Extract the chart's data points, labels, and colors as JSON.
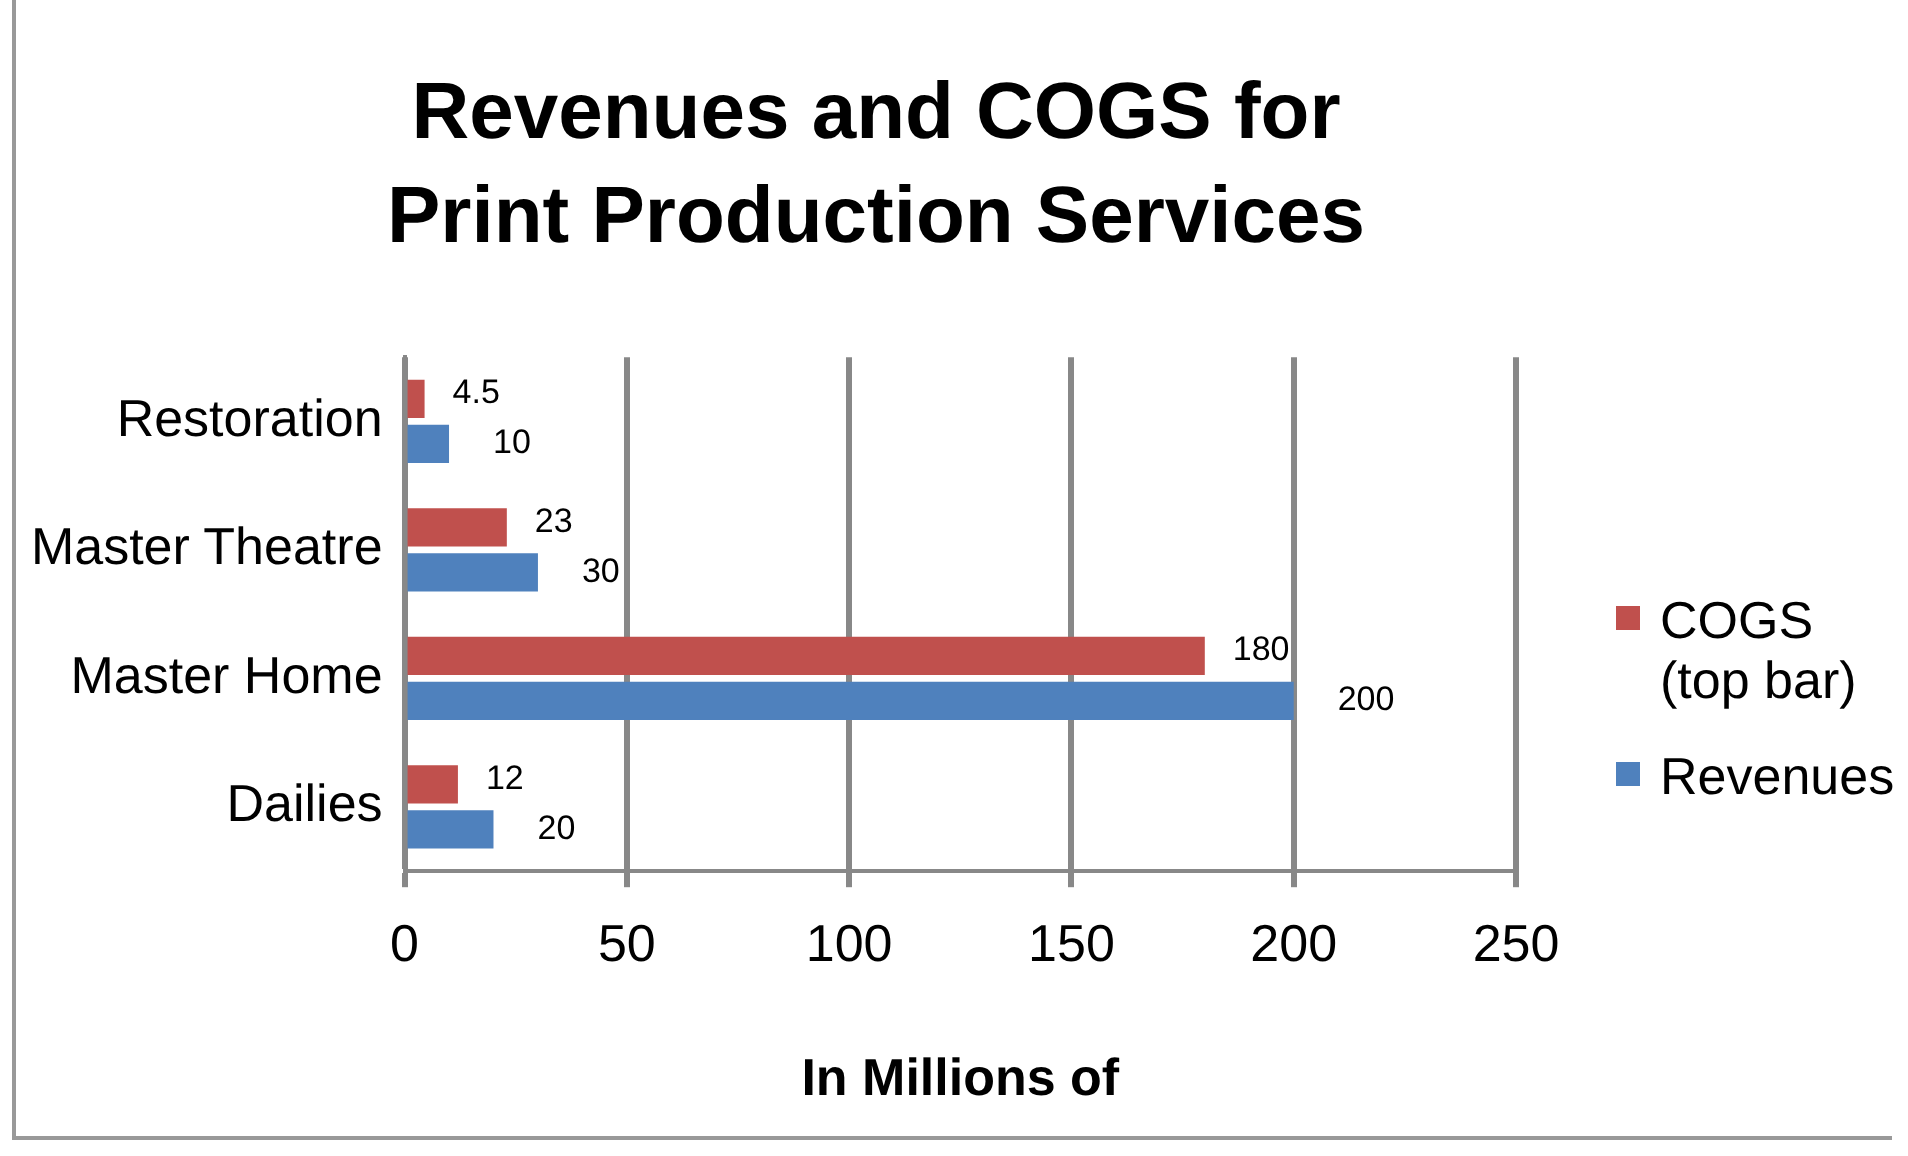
{
  "chart_data": {
    "type": "bar",
    "orientation": "horizontal",
    "title": "Revenues and COGS for Print Production Services",
    "xlabel": "In Millions of",
    "categories": [
      "Restoration",
      "Master Theatre",
      "Master Home",
      "Dailies"
    ],
    "series": [
      {
        "name": "COGS (top bar)",
        "color": "#c0504d",
        "values": [
          4.5,
          23,
          180,
          12
        ]
      },
      {
        "name": "Revenues",
        "color": "#4f81bd",
        "values": [
          10,
          30,
          200,
          20
        ]
      }
    ],
    "xlim": [
      0,
      250
    ],
    "xticks": [
      0,
      50,
      100,
      150,
      200,
      250
    ],
    "grid": "x",
    "legend": "right",
    "data_labels": true
  }
}
